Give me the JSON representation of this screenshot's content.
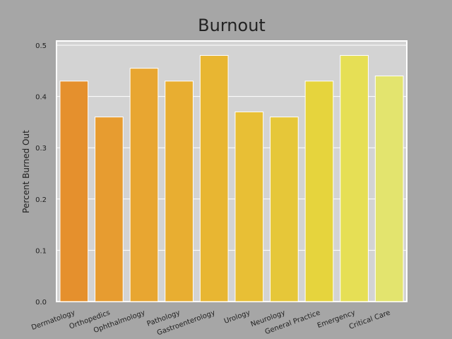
{
  "chart_data": {
    "type": "bar",
    "title": "Burnout",
    "xlabel": "",
    "ylabel": "Percent Burned Out",
    "categories": [
      "Dermatology",
      "Orthopedics",
      "Ophthalmology",
      "Pathology",
      "Gastroenterology",
      "Urology",
      "Neurology",
      "General Practice",
      "Emergency",
      "Critical Care"
    ],
    "values": [
      0.43,
      0.36,
      0.455,
      0.43,
      0.48,
      0.37,
      0.36,
      0.43,
      0.48,
      0.44
    ],
    "colors": [
      "#e5902d",
      "#e79c30",
      "#e8a631",
      "#e8ae31",
      "#e8b632",
      "#e8bf35",
      "#e6c739",
      "#e6d43d",
      "#e6df55",
      "#e3e46e"
    ],
    "ylim": [
      0,
      0.5
    ],
    "yticks": [
      "0.0",
      "0.1",
      "0.2",
      "0.3",
      "0.4",
      "0.5"
    ],
    "grid": true,
    "background": "#a6a6a6",
    "plot_background": "#d3d3d3"
  }
}
